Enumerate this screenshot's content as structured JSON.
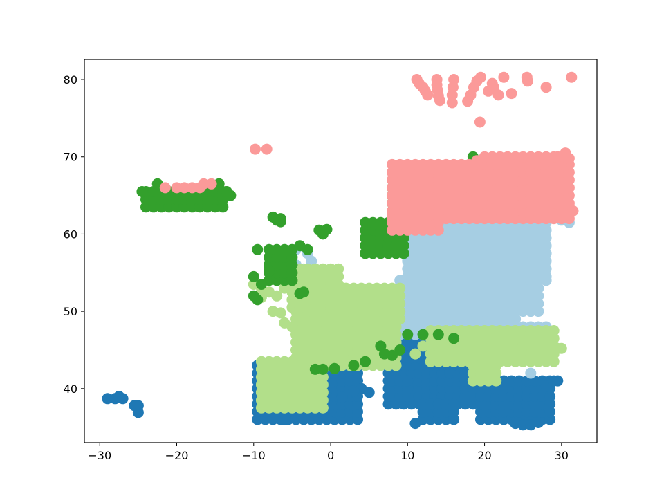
{
  "chart_data": {
    "type": "scatter",
    "title": "",
    "xlabel": "",
    "ylabel": "",
    "xlim": [
      -32,
      34.6
    ],
    "ylim": [
      33,
      82.6
    ],
    "xticks": [
      -30,
      -20,
      -10,
      0,
      10,
      20,
      30
    ],
    "yticks": [
      40,
      50,
      60,
      70,
      80
    ],
    "xtick_labels": [
      "−30",
      "−20",
      "−10",
      "0",
      "10",
      "20",
      "30"
    ],
    "ytick_labels": [
      "40",
      "50",
      "60",
      "70",
      "80"
    ],
    "grid": false,
    "legend": "none",
    "marker_radius_data": 0.72,
    "series": [
      {
        "color": "#1f78b4",
        "regions": [
          {
            "lon": [
              -9.5,
              3.5
            ],
            "lat": [
              36.0,
              43.5
            ],
            "step": 1.0
          },
          {
            "lon": [
              7.5,
              19.0
            ],
            "lat": [
              38.0,
              46.0
            ],
            "step": 1.0
          },
          {
            "lon": [
              19.5,
              28.5
            ],
            "lat": [
              36.0,
              41.5
            ],
            "step": 1.0
          },
          {
            "lon": [
              12.0,
              16.0
            ],
            "lat": [
              36.0,
              38.5
            ],
            "step": 1.0
          },
          {
            "lon": [
              8.0,
              10.0
            ],
            "lat": [
              39.0,
              41.5
            ],
            "step": 1.0
          }
        ],
        "points": [
          [
            -29,
            38.7
          ],
          [
            -28,
            38.7
          ],
          [
            -27.5,
            39.0
          ],
          [
            -27,
            38.7
          ],
          [
            -25.5,
            37.8
          ],
          [
            -25,
            37.8
          ],
          [
            -25,
            36.9
          ],
          [
            -6,
            36.0
          ],
          [
            5,
            39.5
          ],
          [
            4,
            40.0
          ],
          [
            3,
            39.7
          ],
          [
            2,
            39.0
          ],
          [
            1.5,
            38.9
          ],
          [
            28,
            40.3
          ],
          [
            29,
            41.0
          ],
          [
            29.5,
            41.0
          ],
          [
            24,
            35.5
          ],
          [
            25,
            35.3
          ],
          [
            26,
            35.3
          ],
          [
            27,
            35.6
          ],
          [
            11,
            35.5
          ]
        ]
      },
      {
        "color": "#a6cee3",
        "regions": [
          {
            "lon": [
              9.0,
              24.5
            ],
            "lat": [
              47.0,
              54.5
            ],
            "step": 1.0
          },
          {
            "lon": [
              10.0,
              28.5
            ],
            "lat": [
              54.5,
              63.5
            ],
            "step": 1.0
          },
          {
            "lon": [
              20.0,
              28.0
            ],
            "lat": [
              44.0,
              48.0
            ],
            "step": 1.0
          },
          {
            "lon": [
              18.0,
              27.0
            ],
            "lat": [
              50.0,
              56.0
            ],
            "step": 1.0
          }
        ],
        "points": [
          [
            -4.5,
            58.0
          ],
          [
            -3.0,
            57.5
          ],
          [
            -2.5,
            56.5
          ],
          [
            -4.5,
            56.0
          ],
          [
            -3.5,
            55.5
          ],
          [
            -2.0,
            55.0
          ],
          [
            31,
            61.5
          ],
          [
            30,
            61.8
          ],
          [
            29,
            62.0
          ],
          [
            28,
            54.0
          ],
          [
            27.5,
            55.5
          ],
          [
            20,
            43.5
          ],
          [
            22,
            43.8
          ],
          [
            26,
            42.0
          ]
        ]
      },
      {
        "color": "#b2df8a",
        "regions": [
          {
            "lon": [
              -4.5,
              8.5
            ],
            "lat": [
              43.0,
              51.0
            ],
            "step": 1.0
          },
          {
            "lon": [
              -9.0,
              -1.0
            ],
            "lat": [
              37.5,
              43.5
            ],
            "step": 1.0
          },
          {
            "lon": [
              2.0,
              9.0
            ],
            "lat": [
              49.0,
              53.5
            ],
            "step": 1.0
          },
          {
            "lon": [
              -5.0,
              1.5
            ],
            "lat": [
              50.5,
              55.5
            ],
            "step": 1.0
          },
          {
            "lon": [
              13.0,
              29.0
            ],
            "lat": [
              43.5,
              47.5
            ],
            "step": 1.0
          },
          {
            "lon": [
              18.5,
              22.0
            ],
            "lat": [
              41.0,
              43.5
            ],
            "step": 1.0
          }
        ],
        "points": [
          [
            -10,
            53.5
          ],
          [
            -9,
            53.0
          ],
          [
            -8,
            52.5
          ],
          [
            -7,
            52.0
          ],
          [
            -6,
            53.0
          ],
          [
            -9,
            51.8
          ],
          [
            -7.5,
            50.0
          ],
          [
            -6.0,
            48.5
          ],
          [
            -5.0,
            48.0
          ],
          [
            -4.0,
            47.5
          ],
          [
            -3.0,
            47.0
          ],
          [
            -6.5,
            49.8
          ],
          [
            -2,
            44.0
          ],
          [
            29.5,
            45.2
          ],
          [
            30.0,
            45.2
          ],
          [
            28.5,
            44.0
          ],
          [
            11.0,
            44.5
          ],
          [
            12.0,
            45.5
          ]
        ]
      },
      {
        "color": "#33a02c",
        "regions": [
          {
            "lon": [
              -24.0,
              -13.5
            ],
            "lat": [
              63.5,
              65.8
            ],
            "step": 1.0
          },
          {
            "lon": [
              -8.0,
              -5.0
            ],
            "lat": [
              54.0,
              58.5
            ],
            "step": 1.0
          },
          {
            "lon": [
              4.5,
              10.0
            ],
            "lat": [
              57.5,
              62.0
            ],
            "step": 1.0
          },
          {
            "lon": [
              8.0,
              14.0
            ],
            "lat": [
              62.0,
              66.0
            ],
            "step": 1.0
          },
          {
            "lon": [
              14.0,
              18.0
            ],
            "lat": [
              66.5,
              69.0
            ],
            "step": 1.0
          }
        ],
        "points": [
          [
            -24.5,
            65.5
          ],
          [
            -22.5,
            66.5
          ],
          [
            -14.5,
            66.5
          ],
          [
            -13.5,
            65.5
          ],
          [
            -13.0,
            65.0
          ],
          [
            -10,
            54.5
          ],
          [
            -10,
            52.0
          ],
          [
            -9.5,
            51.5
          ],
          [
            -9,
            53.5
          ],
          [
            -8,
            55.2
          ],
          [
            -9.5,
            58.0
          ],
          [
            -7.5,
            62.2
          ],
          [
            -7.0,
            61.8
          ],
          [
            -6.5,
            61.6
          ],
          [
            -6.5,
            62.0
          ],
          [
            -4,
            52.3
          ],
          [
            -3.5,
            52.5
          ],
          [
            -1.5,
            60.5
          ],
          [
            -1.0,
            60.0
          ],
          [
            -0.5,
            60.6
          ],
          [
            -4,
            58.5
          ],
          [
            -3.0,
            58.0
          ],
          [
            6.5,
            45.5
          ],
          [
            7.0,
            44.5
          ],
          [
            8.0,
            44.3
          ],
          [
            9.0,
            45.0
          ],
          [
            10,
            47.0
          ],
          [
            12,
            47.0
          ],
          [
            14,
            47.0
          ],
          [
            16,
            46.5
          ],
          [
            -2,
            42.5
          ],
          [
            -1,
            42.5
          ],
          [
            0.5,
            42.6
          ],
          [
            4.5,
            43.5
          ],
          [
            3.0,
            43.0
          ],
          [
            19.5,
            69.5
          ],
          [
            18.5,
            70.0
          ],
          [
            12.0,
            66.5
          ],
          [
            13.0,
            67.5
          ],
          [
            15.0,
            68.5
          ]
        ]
      },
      {
        "color": "#fb9a99",
        "regions": [
          {
            "lon": [
              8.0,
              31.0
            ],
            "lat": [
              62.0,
              69.0
            ],
            "step": 1.0
          },
          {
            "lon": [
              20.0,
              30.0
            ],
            "lat": [
              69.0,
              70.8
            ],
            "step": 1.0
          },
          {
            "lon": [
              8.0,
              14.0
            ],
            "lat": [
              60.5,
              62.5
            ],
            "step": 1.0
          }
        ],
        "points": [
          [
            -21.5,
            66.0
          ],
          [
            -20.0,
            66.0
          ],
          [
            -19.0,
            66.0
          ],
          [
            -18.0,
            66.0
          ],
          [
            -17.0,
            66.0
          ],
          [
            -16.5,
            66.5
          ],
          [
            -15.5,
            66.5
          ],
          [
            -9.8,
            71.0
          ],
          [
            -8.3,
            71.0
          ],
          [
            11.2,
            80.0
          ],
          [
            11.5,
            79.5
          ],
          [
            12.0,
            79.0
          ],
          [
            12.3,
            78.5
          ],
          [
            12.6,
            78.0
          ],
          [
            13.8,
            80.0
          ],
          [
            13.8,
            79.3
          ],
          [
            13.9,
            78.6
          ],
          [
            14.0,
            77.9
          ],
          [
            14.2,
            77.3
          ],
          [
            16.0,
            80.0
          ],
          [
            15.9,
            79.0
          ],
          [
            15.8,
            78.0
          ],
          [
            15.8,
            77.0
          ],
          [
            17.8,
            77.2
          ],
          [
            18.2,
            78.0
          ],
          [
            18.6,
            79.0
          ],
          [
            19.0,
            79.8
          ],
          [
            19.5,
            80.3
          ],
          [
            20.5,
            78.5
          ],
          [
            21.2,
            79.0
          ],
          [
            21.8,
            78.0
          ],
          [
            21.0,
            79.5
          ],
          [
            22.5,
            80.3
          ],
          [
            23.5,
            78.2
          ],
          [
            25.5,
            80.3
          ],
          [
            25.6,
            79.8
          ],
          [
            28.0,
            79.0
          ],
          [
            31.3,
            80.3
          ],
          [
            19.4,
            74.5
          ],
          [
            19.0,
            69.5
          ],
          [
            29.5,
            70.0
          ],
          [
            30.5,
            70.5
          ],
          [
            31.0,
            69.8
          ],
          [
            31.5,
            63.0
          ],
          [
            31.0,
            62.5
          ]
        ]
      }
    ]
  }
}
